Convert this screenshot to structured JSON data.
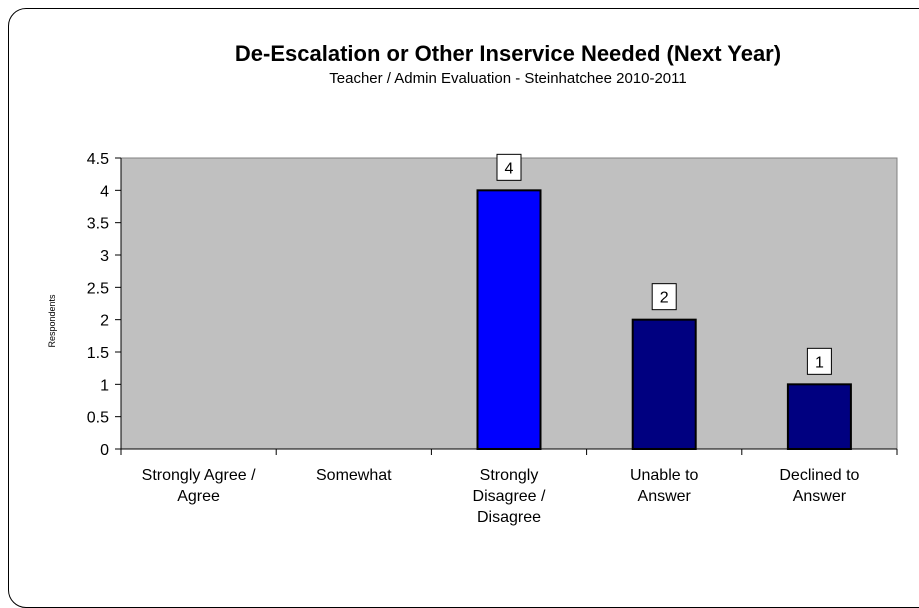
{
  "chart_data": {
    "type": "bar",
    "title": "De-Escalation or Other Inservice Needed (Next Year)",
    "subtitle": "Teacher / Admin Evaluation - Steinhatchee 2010-2011",
    "ylabel": "Respondents",
    "xlabel": "",
    "ylim": [
      0,
      4.5
    ],
    "yticks": [
      "0",
      "0.5",
      "1",
      "1.5",
      "2",
      "2.5",
      "3",
      "3.5",
      "4",
      "4.5"
    ],
    "categories": [
      [
        "Strongly Agree /",
        "Agree"
      ],
      [
        "Somewhat"
      ],
      [
        "Strongly",
        "Disagree /",
        "Disagree"
      ],
      [
        "Unable to",
        "Answer"
      ],
      [
        "Declined to",
        "Answer"
      ]
    ],
    "values": [
      null,
      null,
      4,
      2,
      1
    ],
    "data_labels": [
      "",
      "",
      "4",
      "2",
      "1"
    ],
    "bar_colors": [
      "#0000cc",
      "#0000cc",
      "#0000ff",
      "#000080",
      "#000080"
    ],
    "plot_background": "#c0c0c0",
    "grid": false,
    "legend": "none"
  }
}
